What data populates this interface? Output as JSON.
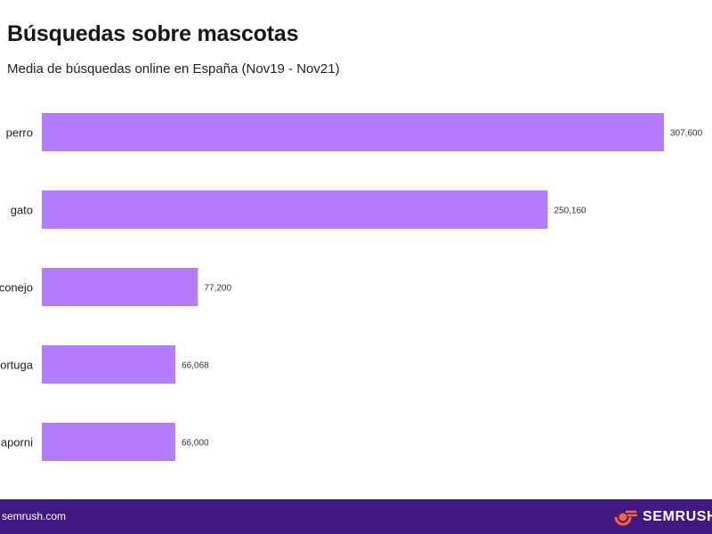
{
  "header": {
    "title": "Búsquedas sobre mascotas",
    "subtitle": "Media de búsquedas online en España (Nov19 - Nov21)"
  },
  "footer": {
    "url": "semrush.com",
    "brand": "SEMRUSH",
    "logo_icon": "semrush-flame-icon",
    "background_color": "#421983"
  },
  "chart_data": {
    "type": "bar",
    "orientation": "horizontal",
    "title": "Búsquedas sobre mascotas",
    "subtitle": "Media de búsquedas online en España (Nov19 - Nov21)",
    "categories": [
      "perro",
      "gato",
      "conejo",
      "tortuga",
      "agaporni"
    ],
    "values": [
      307600,
      250160,
      77200,
      66068,
      66000
    ],
    "value_labels": [
      "307,600",
      "250,160",
      "77,200",
      "66,068",
      "66,000"
    ],
    "bar_color": "#b57cff",
    "grid": false,
    "legend": "none"
  }
}
